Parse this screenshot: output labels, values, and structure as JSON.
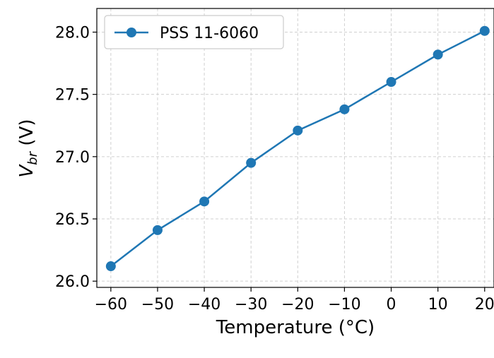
{
  "chart_data": {
    "type": "line",
    "title": "",
    "xlabel": "Temperature (°C)",
    "ylabel": {
      "main": "V",
      "sub": "br",
      "unit": " (V)"
    },
    "x": [
      -60,
      -50,
      -40,
      -30,
      -20,
      -10,
      0,
      10,
      20
    ],
    "x_ticks": [
      "−60",
      "−50",
      "−40",
      "−30",
      "−20",
      "−10",
      "0",
      "10",
      "20"
    ],
    "y_ticks": [
      "26.0",
      "26.5",
      "27.0",
      "27.5",
      "28.0"
    ],
    "xlim": [
      -63,
      22
    ],
    "ylim": [
      25.95,
      28.19
    ],
    "grid": true,
    "legend_position": "top-left",
    "series": [
      {
        "name": "PSS 11-6060",
        "color": "#1f77b4",
        "marker": "circle",
        "values": [
          26.12,
          26.41,
          26.64,
          26.95,
          27.21,
          27.38,
          27.6,
          27.82,
          28.01
        ]
      }
    ]
  }
}
